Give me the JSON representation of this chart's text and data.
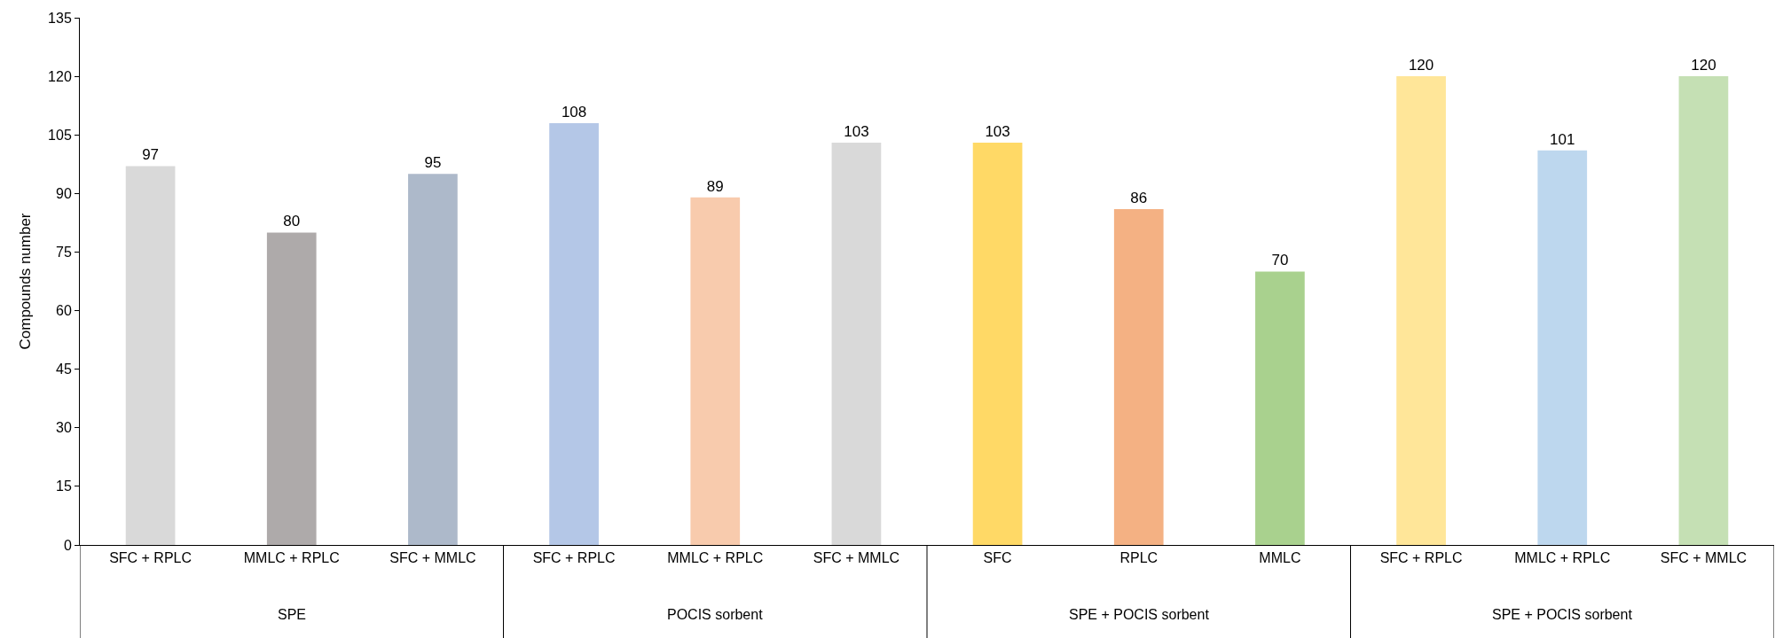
{
  "chart_data": {
    "type": "bar",
    "ylabel": "Compounds number",
    "categories": [
      "SFC + RPLC",
      "MMLC + RPLC",
      "SFC + MMLC",
      "SFC + RPLC",
      "MMLC + RPLC",
      "SFC + MMLC",
      "SFC",
      "RPLC",
      "MMLC",
      "SFC + RPLC",
      "MMLC + RPLC",
      "SFC + MMLC"
    ],
    "values": [
      97,
      80,
      95,
      108,
      89,
      103,
      103,
      86,
      70,
      120,
      101,
      120
    ],
    "colors": [
      "#d9d9d9",
      "#aeaaaa",
      "#adb9ca",
      "#b4c7e7",
      "#f8cbad",
      "#d9d9d9",
      "#ffd966",
      "#f4b183",
      "#a9d18e",
      "#ffe699",
      "#bdd7ee",
      "#c5e0b4"
    ],
    "annotations": [
      "SPE",
      "POCIS sorbent",
      "SPE + POCIS sorbent",
      "SPE + POCIS sorbent"
    ],
    "ylim": [
      0,
      135
    ],
    "yticks": [
      0,
      15,
      30,
      45,
      60,
      75,
      90,
      105,
      120,
      135
    ],
    "data_labels": true
  }
}
